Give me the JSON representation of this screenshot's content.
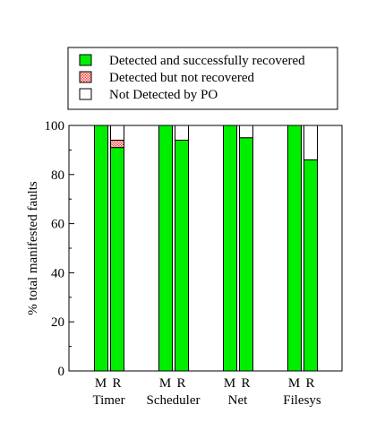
{
  "chart_data": {
    "type": "bar",
    "stacked": true,
    "ylabel": "% total manifested faults",
    "ylim": [
      0,
      100
    ],
    "yticks": [
      0,
      20,
      40,
      60,
      80,
      100
    ],
    "grid": false,
    "legend_position": "top",
    "series": [
      {
        "name": "Detected and successfully recovered",
        "color": "#00ee00",
        "pattern": "none"
      },
      {
        "name": "Detected but not recovered",
        "color": "#ff4d4d",
        "pattern": "checker"
      },
      {
        "name": "Not Detected by PO",
        "color": "#ffffff",
        "pattern": "none"
      }
    ],
    "groups": [
      {
        "category": "Timer",
        "bars": [
          {
            "label": "M",
            "values": [
              100,
              0,
              0
            ]
          },
          {
            "label": "R",
            "values": [
              91,
              3,
              6
            ]
          }
        ]
      },
      {
        "category": "Scheduler",
        "bars": [
          {
            "label": "M",
            "values": [
              100,
              0,
              0
            ]
          },
          {
            "label": "R",
            "values": [
              94,
              0,
              6
            ]
          }
        ]
      },
      {
        "category": "Net",
        "bars": [
          {
            "label": "M",
            "values": [
              100,
              0,
              0
            ]
          },
          {
            "label": "R",
            "values": [
              95,
              0,
              5
            ]
          }
        ]
      },
      {
        "category": "Filesys",
        "bars": [
          {
            "label": "M",
            "values": [
              100,
              0,
              0
            ]
          },
          {
            "label": "R",
            "values": [
              86,
              0,
              14
            ]
          }
        ]
      }
    ]
  }
}
